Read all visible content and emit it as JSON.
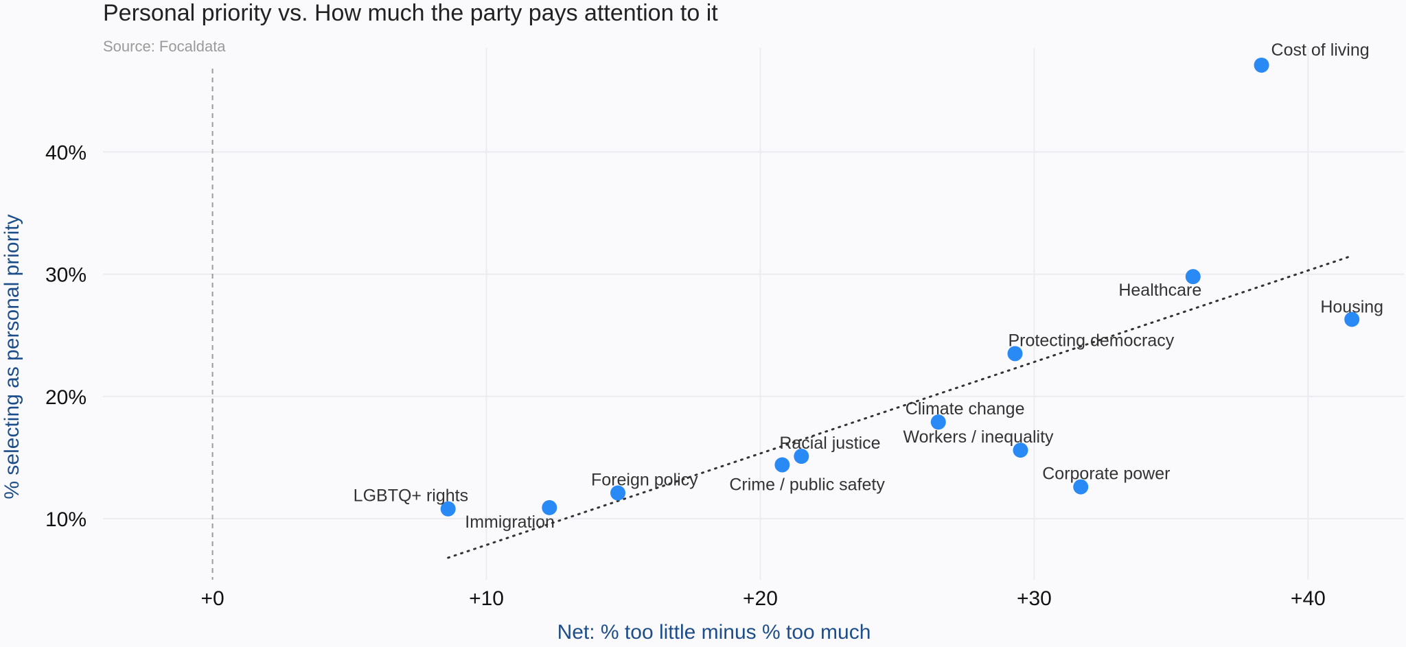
{
  "chart_data": {
    "type": "scatter",
    "title": "Personal priority vs. How much the party pays attention to it",
    "subtitle": "Source: Focaldata",
    "xlabel": "Net: % too little minus % too much",
    "ylabel": "% selecting as personal priority",
    "xlim": [
      -4,
      43.5
    ],
    "ylim": [
      5,
      48.5
    ],
    "x_ticks": [
      0,
      10,
      20,
      30,
      40
    ],
    "x_tick_labels": [
      "+0",
      "+10",
      "+20",
      "+30",
      "+40"
    ],
    "y_ticks": [
      10,
      20,
      30,
      40
    ],
    "y_tick_labels": [
      "10%",
      "20%",
      "30%",
      "40%"
    ],
    "grid": true,
    "zero_line": "dashed",
    "colors": {
      "point": "#2a8af5",
      "trendline": "#333333",
      "grid": "#ebebf0"
    },
    "points": [
      {
        "label": "Cost of living",
        "x": 38.3,
        "y": 47.1
      },
      {
        "label": "Healthcare",
        "x": 35.8,
        "y": 29.8
      },
      {
        "label": "Housing",
        "x": 41.6,
        "y": 26.3
      },
      {
        "label": "Protecting democracy",
        "x": 29.3,
        "y": 23.5
      },
      {
        "label": "Climate change",
        "x": 26.5,
        "y": 17.9
      },
      {
        "label": "Workers / inequality",
        "x": 29.5,
        "y": 15.6
      },
      {
        "label": "Corporate power",
        "x": 31.7,
        "y": 12.6
      },
      {
        "label": "Racial justice",
        "x": 21.5,
        "y": 15.1
      },
      {
        "label": "Crime / public safety",
        "x": 20.8,
        "y": 14.4
      },
      {
        "label": "Foreign policy",
        "x": 14.8,
        "y": 12.1
      },
      {
        "label": "Immigration",
        "x": 12.3,
        "y": 10.9
      },
      {
        "label": "LGBTQ+ rights",
        "x": 8.6,
        "y": 10.8
      }
    ],
    "trendline": {
      "x": [
        8.6,
        41.6
      ],
      "y": [
        6.8,
        31.5
      ],
      "style": "dotted"
    }
  }
}
